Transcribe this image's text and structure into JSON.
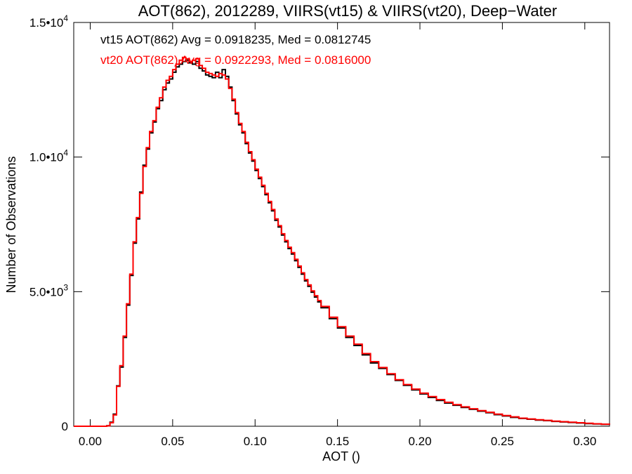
{
  "chart_data": {
    "type": "histogram",
    "title": "AOT(862), 2012289, VIIRS(vt15) & VIIRS(vt20), Deep−Water",
    "xlabel": "AOT ()",
    "ylabel": "Number of Observations",
    "xlim": [
      -0.01,
      0.315
    ],
    "ylim": [
      0,
      15000
    ],
    "x_ticks": [
      {
        "value": 0.0,
        "label": "0.00"
      },
      {
        "value": 0.05,
        "label": "0.05"
      },
      {
        "value": 0.1,
        "label": "0.10"
      },
      {
        "value": 0.15,
        "label": "0.15"
      },
      {
        "value": 0.2,
        "label": "0.20"
      },
      {
        "value": 0.25,
        "label": "0.25"
      },
      {
        "value": 0.3,
        "label": "0.30"
      }
    ],
    "y_ticks": [
      {
        "value": 0,
        "label_base": "0",
        "label_exp": ""
      },
      {
        "value": 5000,
        "label_base": "5.0•10",
        "label_exp": "3"
      },
      {
        "value": 10000,
        "label_base": "1.0•10",
        "label_exp": "4"
      },
      {
        "value": 15000,
        "label_base": "1.5•10",
        "label_exp": "4"
      }
    ],
    "annotations": [
      {
        "text": "vt15 AOT(862) Avg = 0.0918235, Med = 0.0812745",
        "color": "#000000"
      },
      {
        "text": "vt20 AOT(862) Avg = 0.0922293, Med = 0.0816000",
        "color": "#ff0000"
      }
    ],
    "series": [
      {
        "color": "#000000",
        "points": [
          [
            -0.01,
            0
          ],
          [
            0.005,
            0
          ],
          [
            0.01,
            20
          ],
          [
            0.012,
            150
          ],
          [
            0.014,
            450
          ],
          [
            0.016,
            1500
          ],
          [
            0.018,
            2200
          ],
          [
            0.02,
            3300
          ],
          [
            0.022,
            4500
          ],
          [
            0.024,
            5600
          ],
          [
            0.026,
            6800
          ],
          [
            0.028,
            7700
          ],
          [
            0.03,
            8700
          ],
          [
            0.032,
            9700
          ],
          [
            0.034,
            10300
          ],
          [
            0.036,
            10900
          ],
          [
            0.038,
            11300
          ],
          [
            0.04,
            11800
          ],
          [
            0.042,
            12100
          ],
          [
            0.044,
            12500
          ],
          [
            0.046,
            12750
          ],
          [
            0.048,
            12900
          ],
          [
            0.05,
            13150
          ],
          [
            0.052,
            13350
          ],
          [
            0.054,
            13450
          ],
          [
            0.056,
            13550
          ],
          [
            0.058,
            13600
          ],
          [
            0.06,
            13500
          ],
          [
            0.062,
            13450
          ],
          [
            0.064,
            13550
          ],
          [
            0.066,
            13300
          ],
          [
            0.068,
            13200
          ],
          [
            0.07,
            13050
          ],
          [
            0.072,
            13000
          ],
          [
            0.074,
            12950
          ],
          [
            0.076,
            13150
          ],
          [
            0.078,
            12950
          ],
          [
            0.08,
            13250
          ],
          [
            0.082,
            13000
          ],
          [
            0.084,
            12600
          ],
          [
            0.086,
            12100
          ],
          [
            0.088,
            11600
          ],
          [
            0.09,
            11200
          ],
          [
            0.092,
            10900
          ],
          [
            0.094,
            10500
          ],
          [
            0.096,
            10150
          ],
          [
            0.098,
            9850
          ],
          [
            0.1,
            9500
          ],
          [
            0.102,
            9200
          ],
          [
            0.104,
            8900
          ],
          [
            0.106,
            8600
          ],
          [
            0.108,
            8300
          ],
          [
            0.11,
            8000
          ],
          [
            0.112,
            7650
          ],
          [
            0.114,
            7400
          ],
          [
            0.116,
            7100
          ],
          [
            0.118,
            6850
          ],
          [
            0.12,
            6600
          ],
          [
            0.122,
            6400
          ],
          [
            0.124,
            6150
          ],
          [
            0.126,
            5900
          ],
          [
            0.128,
            5650
          ],
          [
            0.13,
            5400
          ],
          [
            0.132,
            5200
          ],
          [
            0.134,
            4980
          ],
          [
            0.136,
            4800
          ],
          [
            0.138,
            4620
          ],
          [
            0.14,
            4400
          ],
          [
            0.145,
            4000
          ],
          [
            0.15,
            3650
          ],
          [
            0.155,
            3300
          ],
          [
            0.16,
            3000
          ],
          [
            0.165,
            2650
          ],
          [
            0.17,
            2350
          ],
          [
            0.175,
            2150
          ],
          [
            0.18,
            1920
          ],
          [
            0.185,
            1700
          ],
          [
            0.19,
            1520
          ],
          [
            0.195,
            1350
          ],
          [
            0.2,
            1200
          ],
          [
            0.205,
            1070
          ],
          [
            0.21,
            960
          ],
          [
            0.215,
            860
          ],
          [
            0.22,
            780
          ],
          [
            0.225,
            700
          ],
          [
            0.23,
            630
          ],
          [
            0.235,
            560
          ],
          [
            0.24,
            500
          ],
          [
            0.245,
            430
          ],
          [
            0.25,
            380
          ],
          [
            0.255,
            330
          ],
          [
            0.26,
            290
          ],
          [
            0.265,
            260
          ],
          [
            0.27,
            230
          ],
          [
            0.275,
            210
          ],
          [
            0.28,
            180
          ],
          [
            0.285,
            160
          ],
          [
            0.29,
            140
          ],
          [
            0.295,
            120
          ],
          [
            0.3,
            100
          ],
          [
            0.305,
            85
          ],
          [
            0.31,
            70
          ],
          [
            0.315,
            60
          ]
        ]
      },
      {
        "color": "#ff0000",
        "points": [
          [
            -0.01,
            0
          ],
          [
            0.005,
            0
          ],
          [
            0.01,
            15
          ],
          [
            0.012,
            130
          ],
          [
            0.014,
            420
          ],
          [
            0.016,
            1480
          ],
          [
            0.018,
            2250
          ],
          [
            0.02,
            3350
          ],
          [
            0.022,
            4550
          ],
          [
            0.024,
            5650
          ],
          [
            0.026,
            6850
          ],
          [
            0.028,
            7750
          ],
          [
            0.03,
            8650
          ],
          [
            0.032,
            9650
          ],
          [
            0.034,
            10350
          ],
          [
            0.036,
            10950
          ],
          [
            0.038,
            11350
          ],
          [
            0.04,
            11850
          ],
          [
            0.042,
            12200
          ],
          [
            0.044,
            12600
          ],
          [
            0.046,
            12850
          ],
          [
            0.048,
            13000
          ],
          [
            0.05,
            13250
          ],
          [
            0.052,
            13450
          ],
          [
            0.054,
            13600
          ],
          [
            0.056,
            13700
          ],
          [
            0.058,
            13650
          ],
          [
            0.06,
            13550
          ],
          [
            0.062,
            13600
          ],
          [
            0.064,
            13650
          ],
          [
            0.066,
            13400
          ],
          [
            0.068,
            13300
          ],
          [
            0.07,
            13150
          ],
          [
            0.072,
            13100
          ],
          [
            0.074,
            13050
          ],
          [
            0.076,
            13000
          ],
          [
            0.078,
            13100
          ],
          [
            0.08,
            13050
          ],
          [
            0.082,
            12900
          ],
          [
            0.084,
            12550
          ],
          [
            0.086,
            12150
          ],
          [
            0.088,
            11650
          ],
          [
            0.09,
            11250
          ],
          [
            0.092,
            10950
          ],
          [
            0.094,
            10550
          ],
          [
            0.096,
            10200
          ],
          [
            0.098,
            9900
          ],
          [
            0.1,
            9550
          ],
          [
            0.102,
            9250
          ],
          [
            0.104,
            8950
          ],
          [
            0.106,
            8650
          ],
          [
            0.108,
            8350
          ],
          [
            0.11,
            8050
          ],
          [
            0.112,
            7700
          ],
          [
            0.114,
            7450
          ],
          [
            0.116,
            7150
          ],
          [
            0.118,
            6900
          ],
          [
            0.12,
            6650
          ],
          [
            0.122,
            6450
          ],
          [
            0.124,
            6200
          ],
          [
            0.126,
            5950
          ],
          [
            0.128,
            5700
          ],
          [
            0.13,
            5450
          ],
          [
            0.132,
            5250
          ],
          [
            0.134,
            5030
          ],
          [
            0.136,
            4850
          ],
          [
            0.138,
            4670
          ],
          [
            0.14,
            4450
          ],
          [
            0.145,
            4050
          ],
          [
            0.15,
            3700
          ],
          [
            0.155,
            3350
          ],
          [
            0.16,
            3050
          ],
          [
            0.165,
            2700
          ],
          [
            0.17,
            2400
          ],
          [
            0.175,
            2180
          ],
          [
            0.18,
            1950
          ],
          [
            0.185,
            1730
          ],
          [
            0.19,
            1550
          ],
          [
            0.195,
            1380
          ],
          [
            0.2,
            1230
          ],
          [
            0.205,
            1100
          ],
          [
            0.21,
            990
          ],
          [
            0.215,
            890
          ],
          [
            0.22,
            800
          ],
          [
            0.225,
            720
          ],
          [
            0.23,
            650
          ],
          [
            0.235,
            580
          ],
          [
            0.24,
            520
          ],
          [
            0.245,
            450
          ],
          [
            0.25,
            400
          ],
          [
            0.255,
            350
          ],
          [
            0.26,
            300
          ],
          [
            0.265,
            270
          ],
          [
            0.27,
            240
          ],
          [
            0.275,
            220
          ],
          [
            0.28,
            190
          ],
          [
            0.285,
            170
          ],
          [
            0.29,
            150
          ],
          [
            0.295,
            130
          ],
          [
            0.3,
            110
          ],
          [
            0.305,
            90
          ],
          [
            0.31,
            75
          ],
          [
            0.315,
            65
          ]
        ]
      }
    ]
  }
}
